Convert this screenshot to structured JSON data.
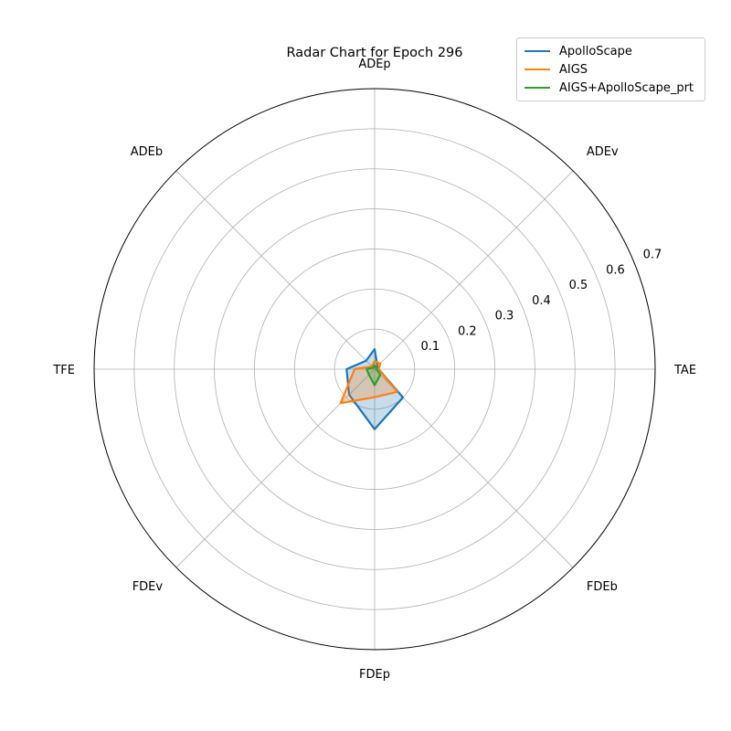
{
  "chart_data": {
    "type": "radar",
    "title": "Radar Chart for Epoch 296",
    "axes": [
      "TAE",
      "ADEv",
      "ADEp",
      "ADEb",
      "TFE",
      "FDEv",
      "FDEp",
      "FDEb"
    ],
    "radial_ticks": [
      "0.1",
      "0.2",
      "0.3",
      "0.4",
      "0.5",
      "0.6",
      "0.7"
    ],
    "radial_tick_values": [
      0.1,
      0.2,
      0.3,
      0.4,
      0.5,
      0.6,
      0.7
    ],
    "rlim": [
      0.0,
      0.7
    ],
    "grid": true,
    "legend_position": "top-right",
    "series": [
      {
        "name": "ApolloScape",
        "color": "#1f77b4",
        "values": [
          0.01,
          0.01,
          0.05,
          0.03,
          0.07,
          0.09,
          0.15,
          0.1
        ]
      },
      {
        "name": "AIGS",
        "color": "#ff7f0e",
        "values": [
          0.01,
          0.02,
          0.02,
          0.01,
          0.05,
          0.12,
          0.07,
          0.08
        ]
      },
      {
        "name": "AIGS+ApolloScape_prt",
        "color": "#2ca02c",
        "values": [
          0.005,
          0.005,
          0.01,
          0.005,
          0.02,
          0.02,
          0.04,
          0.02
        ]
      }
    ]
  }
}
